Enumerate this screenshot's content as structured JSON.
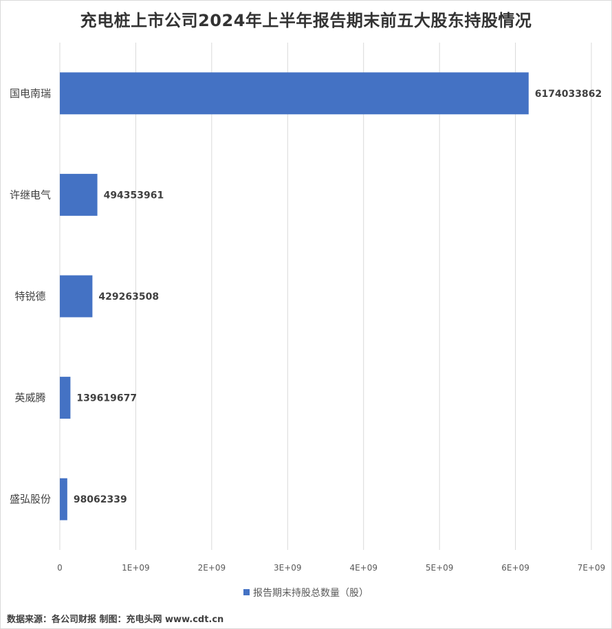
{
  "chart_data": {
    "type": "bar",
    "orientation": "horizontal",
    "title": "充电桩上市公司2024年上半年报告期末前五大股东持股情况",
    "categories": [
      "国电南瑞",
      "许继电气",
      "特锐德",
      "英威腾",
      "盛弘股份"
    ],
    "series": [
      {
        "name": "报告期末持股总数量（股）",
        "values": [
          6174033862,
          494353961,
          429263508,
          139619677,
          98062339
        ],
        "data_labels": [
          "6174033862",
          "494353961",
          "429263508",
          "139619677",
          "98062339"
        ],
        "color": "#4472c4"
      }
    ],
    "xlim": [
      0,
      7000000000
    ],
    "xticks": [
      0,
      1000000000,
      2000000000,
      3000000000,
      4000000000,
      5000000000,
      6000000000,
      7000000000
    ],
    "xtick_labels": [
      "0",
      "1E+09",
      "2E+09",
      "3E+09",
      "4E+09",
      "5E+09",
      "6E+09",
      "7E+09"
    ],
    "xlabel": "",
    "ylabel": "",
    "grid": "vertical",
    "legend_position": "bottom"
  },
  "source_note": "数据来源：各公司财报 制图：充电头网 www.cdt.cn",
  "colors": {
    "bar": "#4472c4",
    "grid": "#d9d9d9",
    "text": "#404040"
  }
}
